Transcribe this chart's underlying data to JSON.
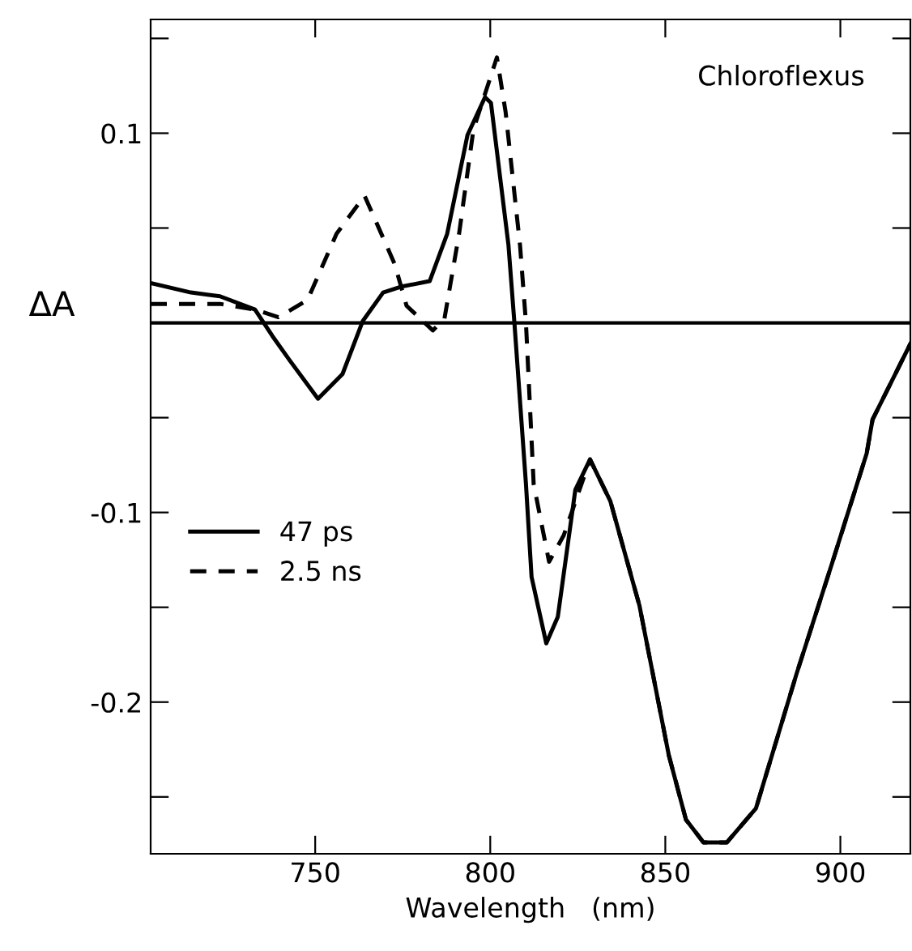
{
  "chart_data": {
    "type": "line",
    "xlabel": "Wavelength   (nm)",
    "ylabel": "ΔA",
    "annotations": [
      "Chloroflexus"
    ],
    "xlim": [
      703,
      920
    ],
    "xticks": [
      750,
      800,
      850,
      900
    ],
    "ylim": [
      -0.28,
      0.16
    ],
    "yticks": [
      {
        "value": 0.15,
        "label": null
      },
      {
        "value": 0.1,
        "label": "0.1"
      },
      {
        "value": 0.05,
        "label": null
      },
      {
        "value": -0.05,
        "label": null
      },
      {
        "value": -0.1,
        "label": "-0.1"
      },
      {
        "value": -0.15,
        "label": null
      },
      {
        "value": -0.2,
        "label": "-0.2"
      },
      {
        "value": -0.25,
        "label": null
      }
    ],
    "ref_lines": [
      {
        "axis": "y",
        "value": 0,
        "label": null,
        "color": "#000000"
      }
    ],
    "grid": false,
    "legend": "left",
    "marker": "none",
    "series": [
      {
        "name": "47 ps",
        "color": "#000000",
        "line_style": "solid",
        "x": [
          703,
          714.5,
          722.8,
          732.8,
          737.8,
          742.8,
          750.8,
          757.8,
          763.6,
          769.4,
          774.4,
          782.7,
          787.7,
          793.5,
          798.5,
          800.2,
          805.2,
          806.9,
          810.2,
          811.8,
          816,
          819.3,
          824.3,
          828.5,
          834.3,
          842.6,
          851,
          855.9,
          860.9,
          867.6,
          875.9,
          887.5,
          897.6,
          907.5,
          909.2,
          920
        ],
        "values": [
          0.021,
          0.016,
          0.014,
          0.007,
          -0.007,
          -0.02,
          -0.04,
          -0.027,
          0.001,
          0.016,
          0.019,
          0.022,
          0.047,
          0.099,
          0.119,
          0.116,
          0.041,
          0,
          -0.085,
          -0.134,
          -0.169,
          -0.155,
          -0.088,
          -0.072,
          -0.094,
          -0.149,
          -0.228,
          -0.262,
          -0.274,
          -0.274,
          -0.256,
          -0.185,
          -0.127,
          -0.069,
          -0.051,
          -0.011
        ]
      },
      {
        "name": "2.5 ns",
        "color": "#000000",
        "line_style": "dashed",
        "x": [
          703,
          722.8,
          732.8,
          739.5,
          747.8,
          756.1,
          764.1,
          772.7,
          776.1,
          783.6,
          786.9,
          791.1,
          795.2,
          801.9,
          804.4,
          808.5,
          810.2,
          812.4,
          816.8,
          821,
          828.5,
          834.3,
          842.6,
          851,
          855.9,
          860.9,
          867.6,
          875.9,
          887.5,
          897.6,
          907.5,
          909.2,
          920
        ],
        "values": [
          0.01,
          0.01,
          0.007,
          0.003,
          0.012,
          0.047,
          0.067,
          0.031,
          0.009,
          -0.004,
          0.002,
          0.047,
          0.102,
          0.14,
          0.111,
          0.041,
          0,
          -0.085,
          -0.126,
          -0.112,
          -0.072,
          -0.094,
          -0.149,
          -0.228,
          -0.262,
          -0.274,
          -0.274,
          -0.256,
          -0.185,
          -0.127,
          -0.069,
          -0.051,
          -0.011
        ]
      }
    ]
  }
}
